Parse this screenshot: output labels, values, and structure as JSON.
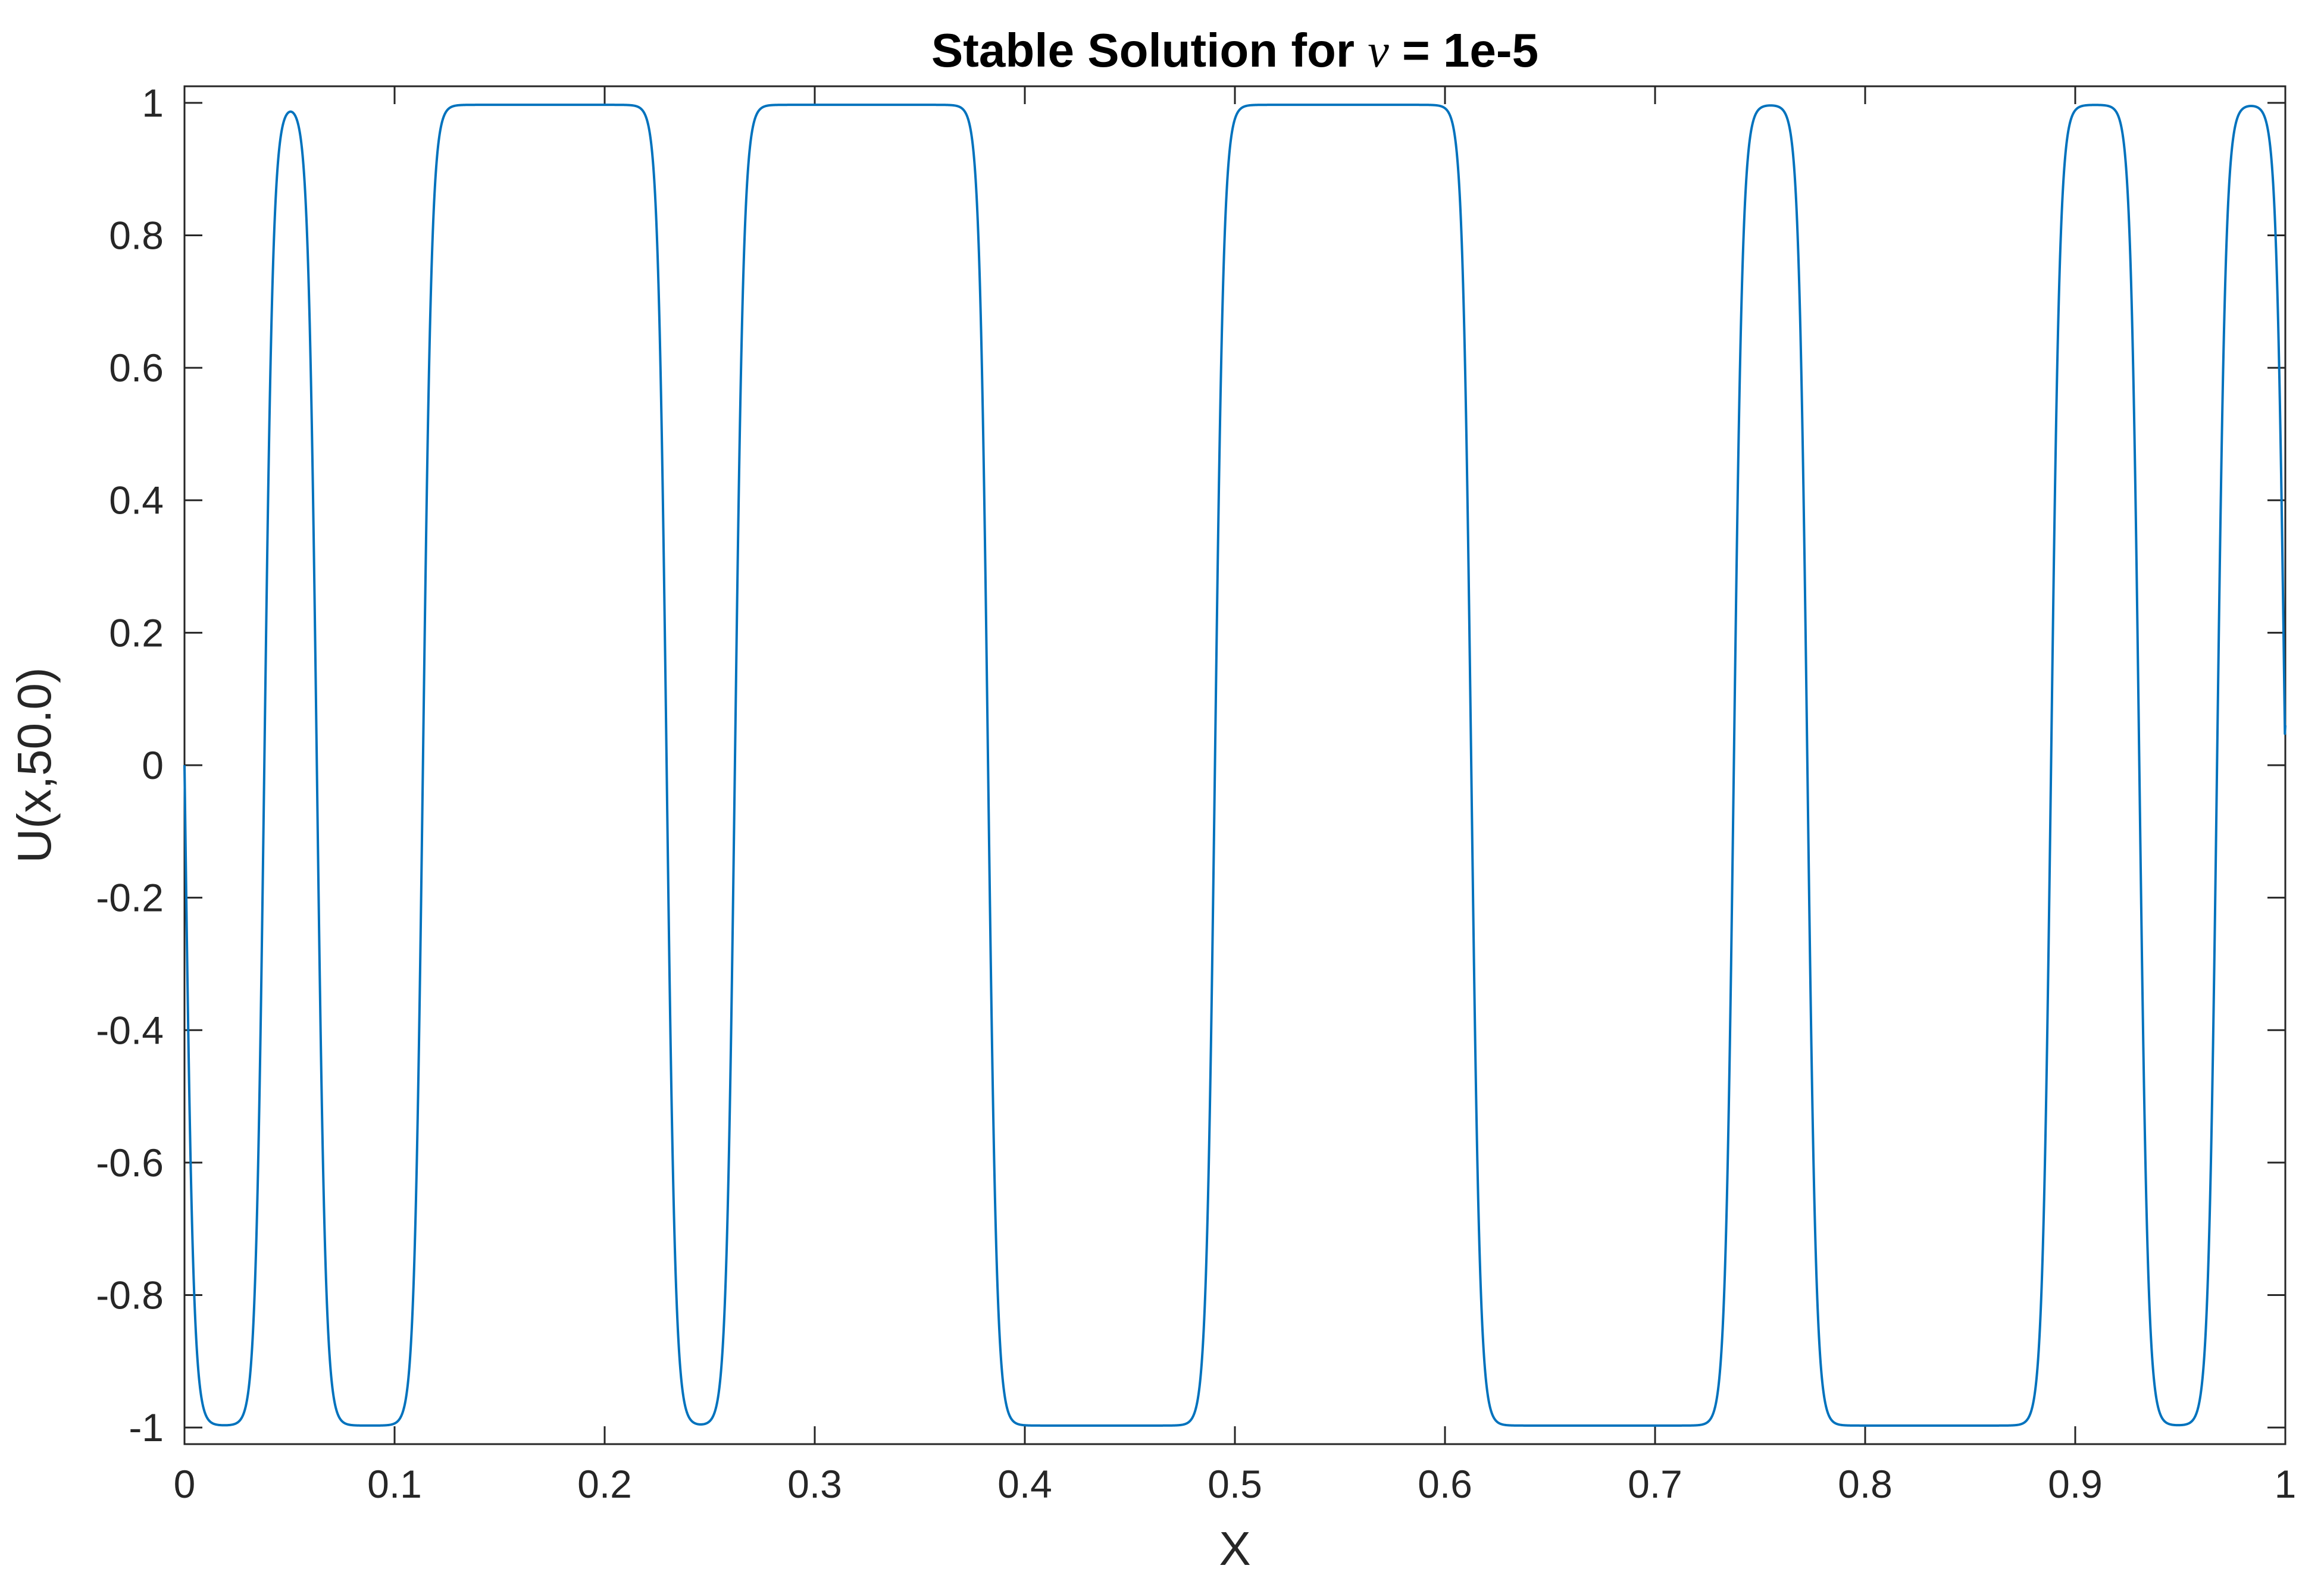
{
  "chart_data": {
    "type": "line",
    "title_prefix": "Stable Solution for ",
    "title_symbol": "ν",
    "title_suffix": " = 1e-5",
    "xlabel": "X",
    "ylabel": "U(x,50.0)",
    "xlim": [
      0,
      1
    ],
    "ylim": [
      -1,
      1
    ],
    "xticks": [
      0,
      0.1,
      0.2,
      0.3,
      0.4,
      0.5,
      0.6,
      0.7,
      0.8,
      0.9,
      1
    ],
    "xtick_labels": [
      "0",
      "0.1",
      "0.2",
      "0.3",
      "0.4",
      "0.5",
      "0.6",
      "0.7",
      "0.8",
      "0.9",
      "1"
    ],
    "yticks": [
      1,
      0.8,
      0.6,
      0.4,
      0.2,
      0,
      -0.2,
      -0.4,
      -0.6,
      -0.8,
      -1
    ],
    "ytick_labels": [
      "1",
      "0.8",
      "0.6",
      "0.4",
      "0.2",
      "0",
      "-0.2",
      "-0.4",
      "-0.6",
      "-0.8",
      "-1"
    ],
    "grid": false,
    "line_color": "#0072BD",
    "series": [
      {
        "start_value": 0,
        "end_value": 0.06,
        "plateau_value": 0.997,
        "zero_crossings": [
          0,
          0.038,
          0.063,
          0.1135,
          0.2295,
          0.262,
          0.3825,
          0.4905,
          0.6125,
          0.7375,
          0.7725,
          0.8885,
          0.9305,
          0.9675,
          1
        ],
        "plateau_signs": [
          -1,
          1,
          -1,
          1,
          -1,
          1,
          -1,
          1,
          -1,
          1,
          -1,
          1,
          -1,
          1
        ]
      }
    ]
  }
}
